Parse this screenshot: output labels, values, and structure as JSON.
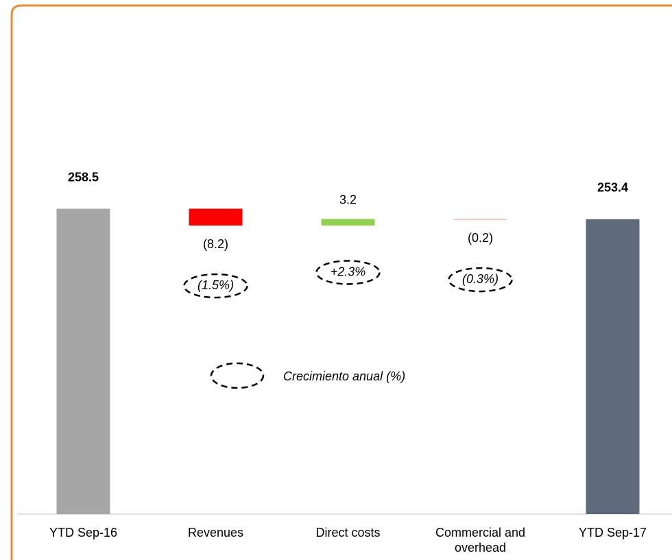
{
  "chart_data": {
    "type": "waterfall",
    "categories": [
      "YTD Sep-16",
      "Revenues",
      "Direct costs",
      "Commercial and overhead",
      "YTD Sep-17"
    ],
    "values": [
      258.5,
      -8.2,
      3.2,
      -0.2,
      253.4
    ],
    "value_labels": [
      "258.5",
      "(8.2)",
      "3.2",
      "(0.2)",
      "253.4"
    ],
    "bar_kinds": [
      "total",
      "delta",
      "delta",
      "delta",
      "total"
    ],
    "colors": [
      "#a6a6a6",
      "#ff0000",
      "#92d050",
      "#f4a3a3",
      "#5f6b7a"
    ],
    "growth_labels": [
      null,
      "(1.5%)",
      "+2.3%",
      "(0.3%)",
      null
    ],
    "legend": "Crecimiento anual (%)",
    "ylim": [
      110,
      290
    ]
  }
}
